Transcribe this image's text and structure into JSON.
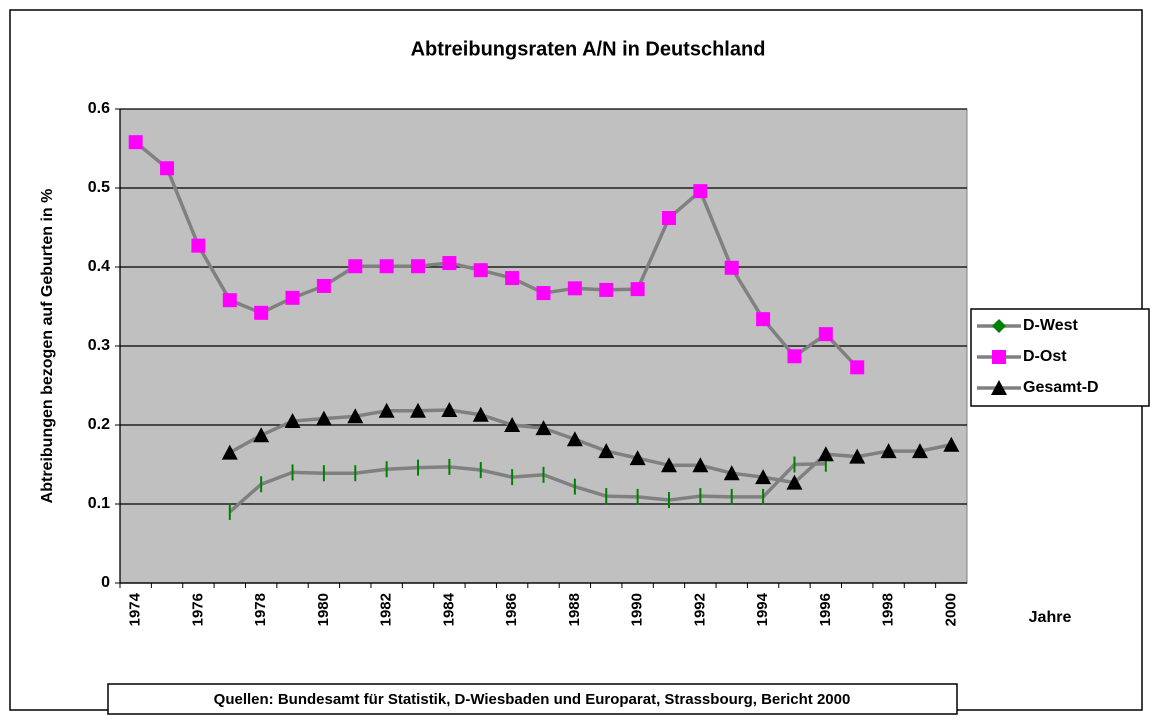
{
  "chart_data": {
    "type": "line",
    "title": "Abtreibungsraten A/N in Deutschland",
    "y_label": "Abtreibungen bezogen auf Geburten in %",
    "x_label": "Jahre",
    "source": "Quellen: Bundesamt für Statistik, D-Wiesbaden und Europarat, Strassbourg, Bericht 2000",
    "categories": [
      "1974",
      null,
      "1976",
      null,
      "1978",
      null,
      "1980",
      null,
      "1982",
      null,
      "1984",
      null,
      "1986",
      null,
      "1988",
      null,
      "1990",
      null,
      "1992",
      null,
      "1994",
      null,
      "1996",
      null,
      "1998",
      null,
      "2000"
    ],
    "ylim": [
      0,
      0.6
    ],
    "yticks": [
      0,
      0.1,
      0.2,
      0.3,
      0.4,
      0.5,
      0.6
    ],
    "grid": true,
    "plot_background": "#c0c0c0",
    "line_color": "#808080",
    "legend": "right",
    "series": [
      {
        "name": "D-West",
        "color": "#008000",
        "marker": "tick",
        "values": [
          null,
          null,
          null,
          0.09,
          0.125,
          0.14,
          0.139,
          0.139,
          0.144,
          0.146,
          0.147,
          0.143,
          0.134,
          0.137,
          0.122,
          0.11,
          0.109,
          0.105,
          0.11,
          0.109,
          0.109,
          0.15,
          0.151,
          null,
          null,
          null,
          null
        ]
      },
      {
        "name": "D-Ost",
        "color": "#ff00ff",
        "marker": "square",
        "values": [
          0.558,
          0.525,
          0.427,
          0.358,
          0.342,
          0.361,
          0.376,
          0.401,
          0.401,
          0.401,
          0.405,
          0.396,
          0.386,
          0.367,
          0.373,
          0.371,
          0.372,
          0.462,
          0.496,
          0.399,
          0.334,
          0.287,
          0.315,
          0.273,
          null,
          null,
          null
        ]
      },
      {
        "name": "Gesamt-D",
        "color": "#000000",
        "marker": "triangle",
        "values": [
          null,
          null,
          null,
          0.165,
          0.187,
          0.205,
          0.208,
          0.211,
          0.218,
          0.218,
          0.219,
          0.213,
          0.2,
          0.196,
          0.182,
          0.167,
          0.158,
          0.149,
          0.149,
          0.139,
          0.134,
          0.127,
          0.163,
          0.16,
          0.167,
          0.167,
          0.175
        ]
      }
    ]
  }
}
